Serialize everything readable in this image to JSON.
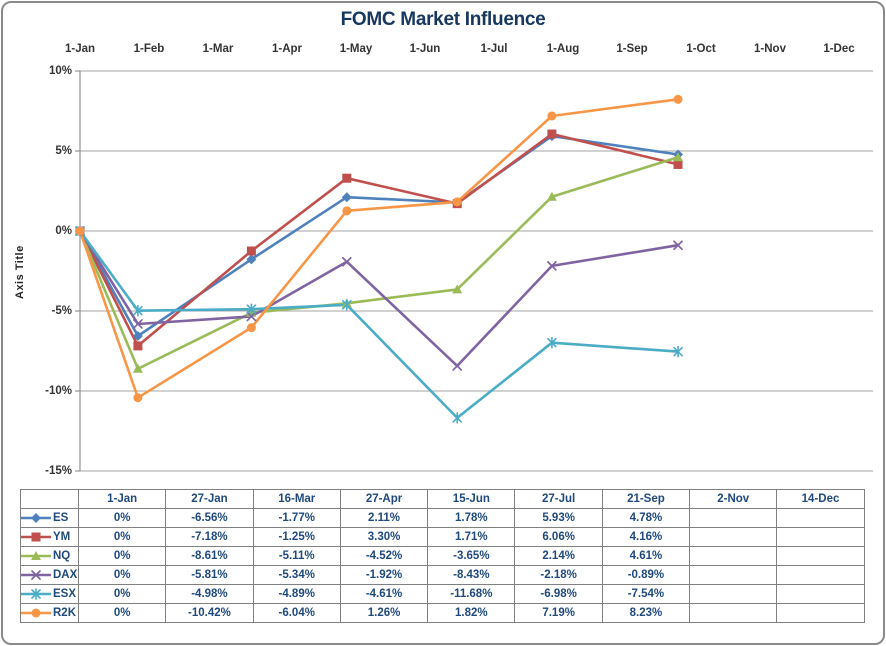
{
  "chart_data": {
    "type": "line",
    "title": "FOMC Market Influence",
    "xlabel": "",
    "ylabel": "Axis Title",
    "x_axis_labels": [
      "1-Jan",
      "1-Feb",
      "1-Mar",
      "1-Apr",
      "1-May",
      "1-Jun",
      "1-Jul",
      "1-Aug",
      "1-Sep",
      "1-Oct",
      "1-Nov",
      "1-Dec"
    ],
    "y_tick_labels": [
      "10%",
      "5%",
      "0%",
      "-5%",
      "-10%",
      "-15%"
    ],
    "y_tick_values": [
      10,
      5,
      0,
      -5,
      -10,
      -15
    ],
    "ylim": [
      -15,
      10
    ],
    "grid": true,
    "legend_position": "table-left",
    "point_dates": [
      "1-Jan",
      "27-Jan",
      "16-Mar",
      "27-Apr",
      "15-Jun",
      "27-Jul",
      "21-Sep"
    ],
    "point_month_positions": [
      0,
      0.839,
      2.484,
      3.867,
      5.467,
      6.839,
      8.667
    ],
    "series": [
      {
        "name": "ES",
        "color": "#4F81BD",
        "marker": "diamond",
        "values": [
          0,
          -6.56,
          -1.77,
          2.11,
          1.78,
          5.93,
          4.78
        ]
      },
      {
        "name": "YM",
        "color": "#C0504D",
        "marker": "square",
        "values": [
          0,
          -7.18,
          -1.25,
          3.3,
          1.71,
          6.06,
          4.16
        ]
      },
      {
        "name": "NQ",
        "color": "#9BBB59",
        "marker": "triangle",
        "values": [
          0,
          -8.61,
          -5.11,
          -4.52,
          -3.65,
          2.14,
          4.61
        ]
      },
      {
        "name": "DAX",
        "color": "#8064A2",
        "marker": "x",
        "values": [
          0,
          -5.81,
          -5.34,
          -1.92,
          -8.43,
          -2.18,
          -0.89
        ]
      },
      {
        "name": "ESX",
        "color": "#4BACC6",
        "marker": "asterisk",
        "values": [
          0,
          -4.98,
          -4.89,
          -4.61,
          -11.68,
          -6.98,
          -7.54
        ]
      },
      {
        "name": "R2K",
        "color": "#F79646",
        "marker": "circle",
        "values": [
          0,
          -10.42,
          -6.04,
          1.26,
          1.82,
          7.19,
          8.23
        ]
      }
    ]
  },
  "table": {
    "columns": [
      "1-Jan",
      "27-Jan",
      "16-Mar",
      "27-Apr",
      "15-Jun",
      "27-Jul",
      "21-Sep",
      "2-Nov",
      "14-Dec"
    ],
    "rows": [
      {
        "label": "ES",
        "cells": [
          "0%",
          "-6.56%",
          "-1.77%",
          "2.11%",
          "1.78%",
          "5.93%",
          "4.78%",
          "",
          ""
        ]
      },
      {
        "label": "YM",
        "cells": [
          "0%",
          "-7.18%",
          "-1.25%",
          "3.30%",
          "1.71%",
          "6.06%",
          "4.16%",
          "",
          ""
        ]
      },
      {
        "label": "NQ",
        "cells": [
          "0%",
          "-8.61%",
          "-5.11%",
          "-4.52%",
          "-3.65%",
          "2.14%",
          "4.61%",
          "",
          ""
        ]
      },
      {
        "label": "DAX",
        "cells": [
          "0%",
          "-5.81%",
          "-5.34%",
          "-1.92%",
          "-8.43%",
          "-2.18%",
          "-0.89%",
          "",
          ""
        ]
      },
      {
        "label": "ESX",
        "cells": [
          "0%",
          "-4.98%",
          "-4.89%",
          "-4.61%",
          "-11.68%",
          "-6.98%",
          "-7.54%",
          "",
          ""
        ]
      },
      {
        "label": "R2K",
        "cells": [
          "0%",
          "-10.42%",
          "-6.04%",
          "1.26%",
          "1.82%",
          "7.19%",
          "8.23%",
          "",
          ""
        ]
      }
    ],
    "text_color": "#1F497D"
  },
  "style": {
    "title_color": "#17375E",
    "gridline_color": "#A6A6A6",
    "axis_color": "#808080",
    "border_color": "#8A8A8A"
  }
}
